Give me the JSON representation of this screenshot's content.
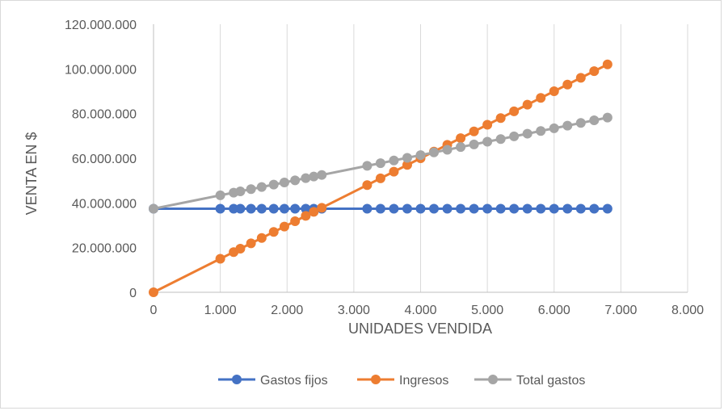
{
  "chart_data": {
    "type": "line",
    "title": "",
    "xlabel": "UNIDADES VENDIDA",
    "ylabel": "VENTA EN $",
    "xlim": [
      0,
      8000
    ],
    "ylim": [
      0,
      120000000
    ],
    "x_ticks": [
      0,
      1000,
      2000,
      3000,
      4000,
      5000,
      6000,
      7000,
      8000
    ],
    "x_tick_labels": [
      "0",
      "1.000",
      "2.000",
      "3.000",
      "4.000",
      "5.000",
      "6.000",
      "7.000",
      "8.000"
    ],
    "y_ticks": [
      0,
      20000000,
      40000000,
      60000000,
      80000000,
      100000000,
      120000000
    ],
    "y_tick_labels": [
      "0",
      "20.000.000",
      "40.000.000",
      "60.000.000",
      "80.000.000",
      "100.000.000",
      "120.000.000"
    ],
    "grid": "vertical",
    "legend": "bottom",
    "x": [
      0,
      1000,
      1200,
      1300,
      1460,
      1620,
      1800,
      1960,
      2120,
      2280,
      2400,
      2520,
      3200,
      3400,
      3600,
      3800,
      4000,
      4200,
      4400,
      4600,
      4800,
      5000,
      5200,
      5400,
      5600,
      5800,
      6000,
      6200,
      6400,
      6600,
      6800
    ],
    "series": [
      {
        "name": "Gastos fijos",
        "color": "#4472c4",
        "values": [
          37400000,
          37400000,
          37400000,
          37400000,
          37400000,
          37400000,
          37400000,
          37400000,
          37400000,
          37400000,
          37400000,
          37400000,
          37400000,
          37400000,
          37400000,
          37400000,
          37400000,
          37400000,
          37400000,
          37400000,
          37400000,
          37400000,
          37400000,
          37400000,
          37400000,
          37400000,
          37400000,
          37400000,
          37400000,
          37400000,
          37400000
        ]
      },
      {
        "name": "Ingresos",
        "color": "#ed7d31",
        "values": [
          0,
          15000000,
          18000000,
          19500000,
          21900000,
          24300000,
          27000000,
          29400000,
          31800000,
          34200000,
          36000000,
          37800000,
          48000000,
          51000000,
          54000000,
          57000000,
          60000000,
          63000000,
          66000000,
          69000000,
          72000000,
          75000000,
          78000000,
          81000000,
          84000000,
          87000000,
          90000000,
          93000000,
          96000000,
          99000000,
          102000000
        ]
      },
      {
        "name": "Total gastos",
        "color": "#a5a5a5",
        "values": [
          37400000,
          43400000,
          44600000,
          45200000,
          46160000,
          47120000,
          48200000,
          49160000,
          50120000,
          51080000,
          51800000,
          52520000,
          56600000,
          57800000,
          59000000,
          60200000,
          61400000,
          62600000,
          63800000,
          65000000,
          66200000,
          67400000,
          68600000,
          69800000,
          71000000,
          72200000,
          73400000,
          74600000,
          75800000,
          77000000,
          78200000
        ]
      }
    ]
  }
}
